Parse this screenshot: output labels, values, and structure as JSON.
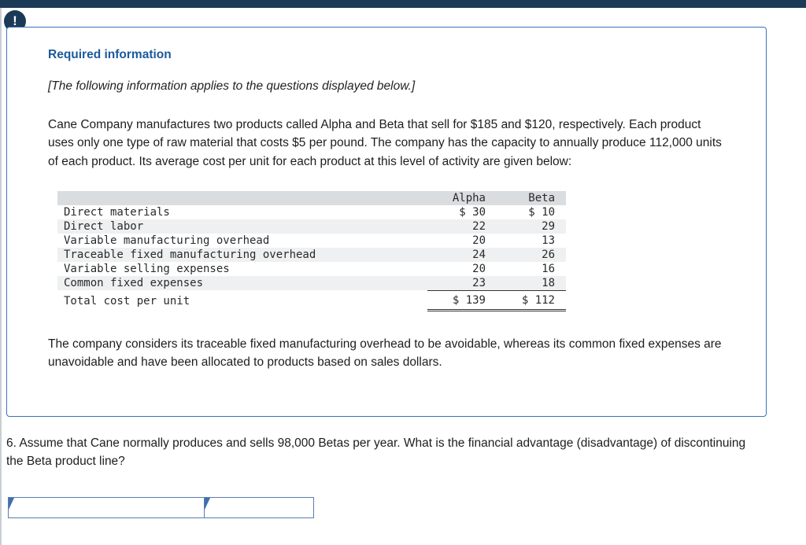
{
  "alert": {
    "icon": "!"
  },
  "info_box": {
    "title": "Required information",
    "subtitle": "[The following information applies to the questions displayed below.]",
    "paragraph1": "Cane Company manufactures two products called Alpha and Beta that sell for $185 and $120, respectively. Each product uses only one type of raw material that costs $5 per pound. The company has the capacity to annually produce 112,000 units of each product. Its average cost per unit for each product at this level of activity are given below:",
    "paragraph2": "The company considers its traceable fixed manufacturing overhead to be avoidable, whereas its common fixed expenses are unavoidable and have been allocated to products based on sales dollars."
  },
  "chart_data": {
    "type": "table",
    "columns": [
      "",
      "Alpha",
      "Beta"
    ],
    "rows": [
      [
        "Direct materials",
        "$ 30",
        "$ 10"
      ],
      [
        "Direct labor",
        "22",
        "29"
      ],
      [
        "Variable manufacturing overhead",
        "20",
        "13"
      ],
      [
        "Traceable fixed manufacturing overhead",
        "24",
        "26"
      ],
      [
        "Variable selling expenses",
        "20",
        "16"
      ],
      [
        "Common fixed expenses",
        "23",
        "18"
      ],
      [
        "Total cost per unit",
        "$ 139",
        "$ 112"
      ]
    ]
  },
  "table": {
    "columns": [
      "Alpha",
      "Beta"
    ],
    "rows": [
      {
        "label": "Direct materials",
        "alpha": "$ 30",
        "beta": "$ 10"
      },
      {
        "label": "Direct labor",
        "alpha": "22",
        "beta": "29"
      },
      {
        "label": "Variable manufacturing overhead",
        "alpha": "20",
        "beta": "13"
      },
      {
        "label": "Traceable fixed manufacturing overhead",
        "alpha": "24",
        "beta": "26"
      },
      {
        "label": "Variable selling expenses",
        "alpha": "20",
        "beta": "16"
      },
      {
        "label": "Common fixed expenses",
        "alpha": "23",
        "beta": "18"
      }
    ],
    "total_row": {
      "label": "Total cost per unit",
      "alpha": "$ 139",
      "beta": "$ 112"
    }
  },
  "question": {
    "text": "6. Assume that Cane normally produces and sells 98,000 Betas per year. What is the financial advantage (disadvantage) of discontinuing the Beta product line?"
  },
  "answer": {
    "field1_value": "",
    "field2_value": ""
  },
  "colors": {
    "topbar": "#1b3a57",
    "box_border": "#3a72b9",
    "title_blue": "#1a5a9b",
    "table_header_bg": "#d9dde0",
    "table_stripe_bg": "#eef0f1",
    "answer_border": "#5a7db0",
    "marker_blue": "#3f6fae"
  }
}
